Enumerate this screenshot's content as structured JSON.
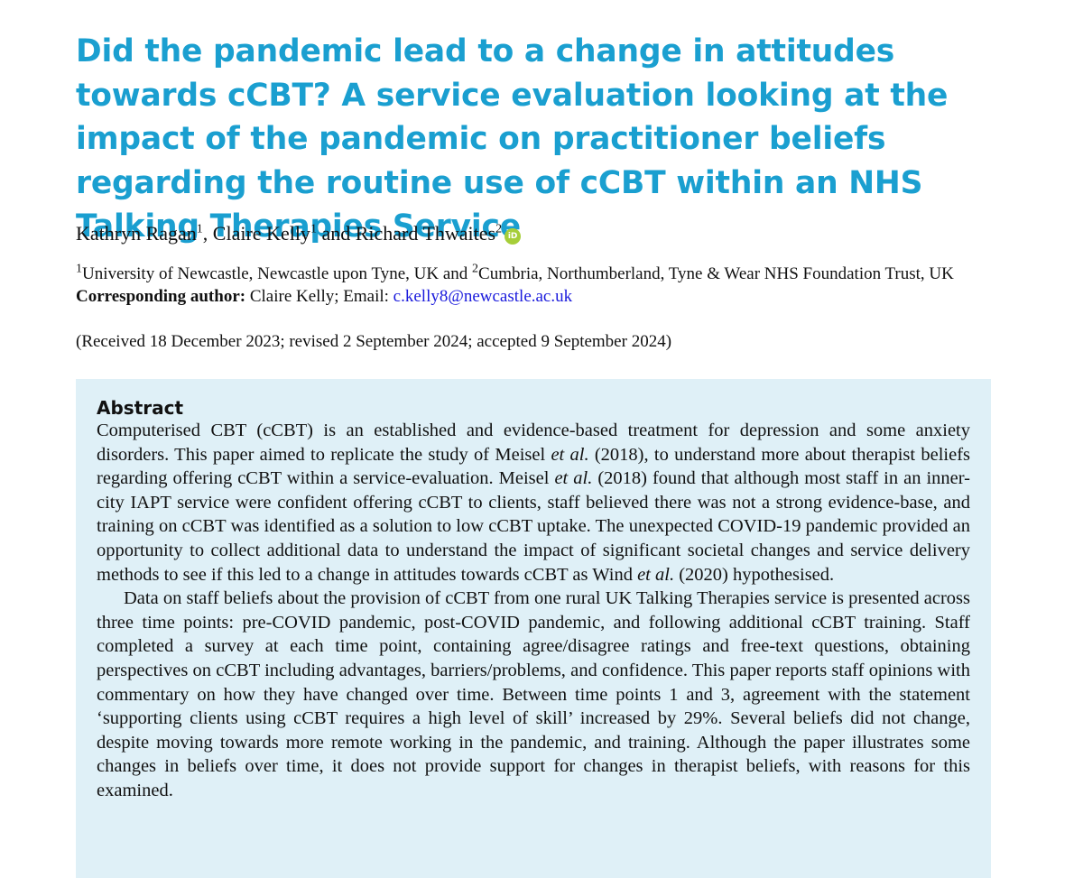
{
  "title": "Did the pandemic lead to a change in attitudes towards cCBT? A service evaluation looking at the impact of the pandemic on practitioner beliefs regarding the routine use of cCBT within an NHS Talking Therapies Service",
  "authors": [
    {
      "name": "Kathryn Ragan",
      "affil": "1",
      "sep": ", "
    },
    {
      "name": "Claire Kelly",
      "affil": "1",
      "sep": " and "
    },
    {
      "name": "Richard Thwaites",
      "affil": "2",
      "sep": ""
    }
  ],
  "orcid_icon": {
    "icon": "orcid-icon",
    "text": "iD",
    "color": "#a6ce39"
  },
  "affiliations": [
    {
      "num": "1",
      "text": "University of Newcastle, Newcastle upon Tyne, UK and "
    },
    {
      "num": "2",
      "text": "Cumbria, Northumberland, Tyne & Wear NHS Foundation Trust, UK"
    }
  ],
  "correspondence": {
    "label": "Corresponding author:",
    "text": " Claire Kelly; Email: ",
    "email": "c.kelly8@newcastle.ac.uk"
  },
  "dates": "(Received 18 December 2023; revised 2 September 2024; accepted 9 September 2024)",
  "abstract": {
    "heading": "Abstract",
    "p1": [
      "Computerised CBT (cCBT) is an established and evidence-based treatment for depression and some anxiety disorders. This paper aimed to replicate the study of Meisel ",
      "et al.",
      " (2018), to understand more about therapist beliefs regarding offering cCBT within a service-evaluation. Meisel ",
      "et al.",
      " (2018) found that although most staff in an inner-city IAPT service were confident offering cCBT to clients, staff believed there was not a strong evidence-base, and training on cCBT was identified as a solution to low cCBT uptake. The unexpected COVID-19 pandemic provided an opportunity to collect additional data to understand the impact of significant societal changes and service delivery methods to see if this led to a change in attitudes towards cCBT as Wind ",
      "et al.",
      " (2020) hypothesised."
    ],
    "p2": "Data on staff beliefs about the provision of cCBT from one rural UK Talking Therapies service is presented across three time points: pre-COVID pandemic, post-COVID pandemic, and following additional cCBT training. Staff completed a survey at each time point, containing agree/disagree ratings and free-text questions, obtaining perspectives on cCBT including advantages, barriers/problems, and confidence. This paper reports staff opinions with commentary on how they have changed over time. Between time points 1 and 3, agreement with the statement ‘supporting clients using cCBT requires a high level of skill’ increased by 29%. Several beliefs did not change, despite moving towards more remote working in the pandemic, and training. Although the paper illustrates some changes in beliefs over time, it does not provide support for changes in therapist beliefs, with reasons for this examined."
  },
  "colors": {
    "title": "#1a9fd0",
    "abstract_background": "#dff0f7",
    "link": "#1a1adc"
  }
}
